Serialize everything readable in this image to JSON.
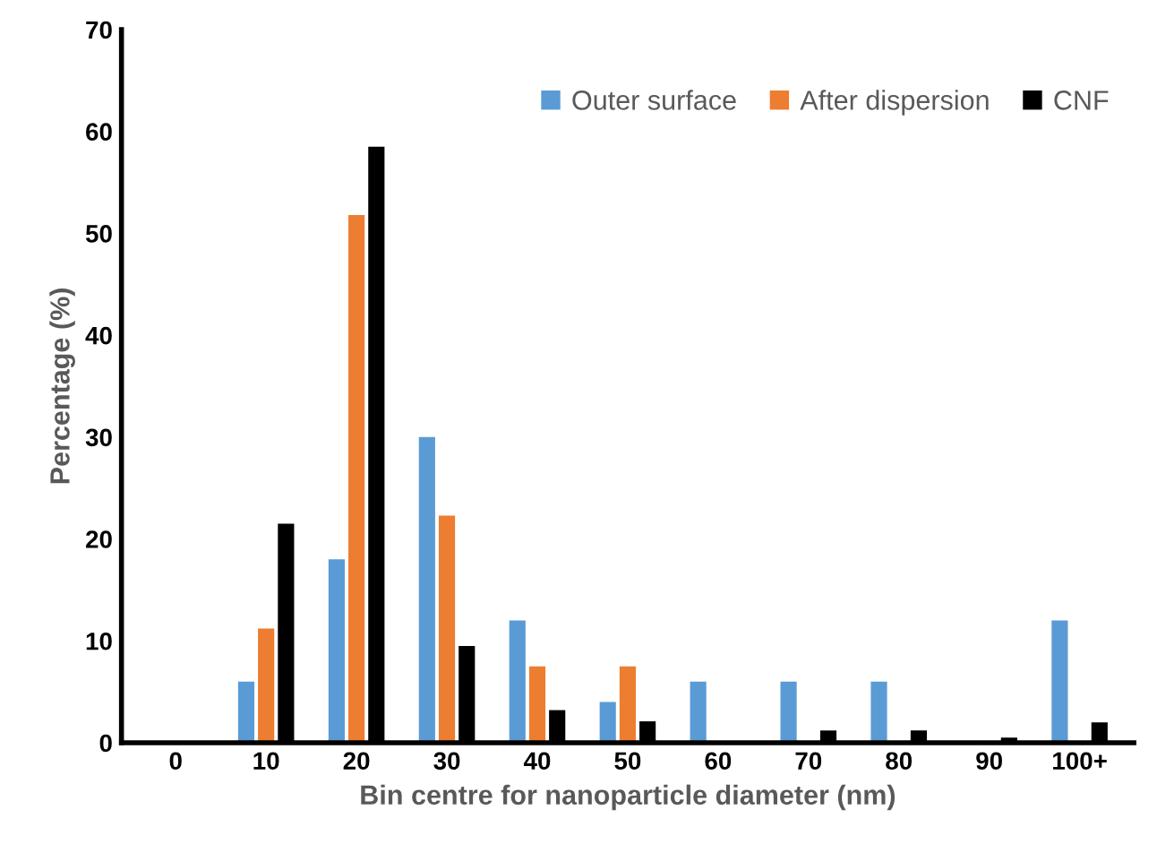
{
  "chart_data": {
    "type": "bar",
    "xlabel": "Bin centre for nanoparticle diameter (nm)",
    "ylabel": "Percentage (%)",
    "categories": [
      "0",
      "10",
      "20",
      "30",
      "40",
      "50",
      "60",
      "70",
      "80",
      "90",
      "100+"
    ],
    "series": [
      {
        "name": "Outer surface",
        "color": "#5b9bd5",
        "values": [
          0,
          6,
          18,
          30,
          12,
          4,
          6,
          6,
          6,
          0,
          12
        ]
      },
      {
        "name": "After dispersion",
        "color": "#ed7d31",
        "values": [
          0,
          11.2,
          51.8,
          22.3,
          7.5,
          7.5,
          0,
          0,
          0,
          0,
          0
        ]
      },
      {
        "name": "CNF",
        "color": "#000000",
        "values": [
          0,
          21.5,
          58.5,
          9.5,
          3.2,
          2.1,
          0,
          1.2,
          1.2,
          0.5,
          2
        ]
      }
    ],
    "ylim": [
      0,
      70
    ],
    "yticks": [
      0,
      10,
      20,
      30,
      40,
      50,
      60,
      70
    ],
    "grid": false,
    "legend": "top right"
  }
}
